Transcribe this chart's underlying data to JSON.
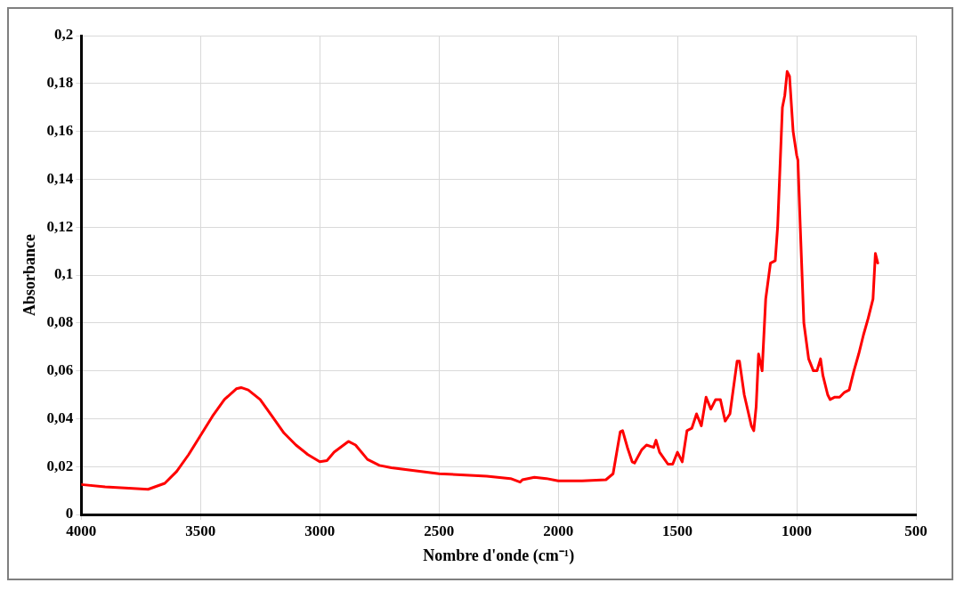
{
  "chart_data": {
    "type": "line",
    "xlabel": "Nombre d'onde (cm⁻¹)",
    "ylabel": "Absorbance",
    "xlim": [
      4000,
      500
    ],
    "xticks": [
      4000,
      3500,
      3000,
      2500,
      2000,
      1500,
      1000,
      500
    ],
    "ylim": [
      0,
      0.2
    ],
    "yticks": [
      0,
      {
        "value": 0.02,
        "label": "0,02"
      },
      {
        "value": 0.04,
        "label": "0,04"
      },
      {
        "value": 0.06,
        "label": "0,06"
      },
      {
        "value": 0.08,
        "label": "0,08"
      },
      {
        "value": 0.1,
        "label": "0,1"
      },
      {
        "value": 0.12,
        "label": "0,12"
      },
      {
        "value": 0.14,
        "label": "0,14"
      },
      {
        "value": 0.16,
        "label": "0,16"
      },
      {
        "value": 0.18,
        "label": "0,18"
      },
      {
        "value": 0.2,
        "label": "0,2"
      }
    ],
    "grid": true,
    "legend": false,
    "marker": "none",
    "line_style": "solid",
    "series": [
      {
        "color": "#ff0000",
        "x": [
          4000,
          3900,
          3800,
          3720,
          3650,
          3600,
          3550,
          3500,
          3450,
          3400,
          3350,
          3330,
          3300,
          3250,
          3200,
          3150,
          3100,
          3050,
          3000,
          2970,
          2940,
          2900,
          2880,
          2850,
          2800,
          2750,
          2700,
          2500,
          2300,
          2200,
          2160,
          2150,
          2100,
          2050,
          2000,
          1900,
          1800,
          1770,
          1740,
          1730,
          1710,
          1690,
          1680,
          1650,
          1630,
          1600,
          1590,
          1575,
          1540,
          1520,
          1500,
          1480,
          1460,
          1440,
          1420,
          1400,
          1380,
          1360,
          1340,
          1320,
          1300,
          1280,
          1250,
          1240,
          1220,
          1190,
          1180,
          1170,
          1160,
          1145,
          1130,
          1110,
          1090,
          1080,
          1060,
          1050,
          1040,
          1030,
          1015,
          1000,
          995,
          985,
          970,
          950,
          930,
          915,
          900,
          890,
          870,
          860,
          840,
          820,
          800,
          780,
          760,
          740,
          720,
          700,
          680,
          670,
          660
        ],
        "values": [
          0.0125,
          0.0115,
          0.011,
          0.0105,
          0.013,
          0.018,
          0.025,
          0.033,
          0.041,
          0.048,
          0.0525,
          0.053,
          0.052,
          0.048,
          0.041,
          0.034,
          0.029,
          0.025,
          0.022,
          0.0225,
          0.026,
          0.029,
          0.0305,
          0.029,
          0.023,
          0.0205,
          0.0195,
          0.017,
          0.016,
          0.015,
          0.0135,
          0.0145,
          0.0155,
          0.015,
          0.014,
          0.014,
          0.0145,
          0.017,
          0.0345,
          0.035,
          0.028,
          0.022,
          0.0215,
          0.027,
          0.029,
          0.028,
          0.031,
          0.026,
          0.021,
          0.021,
          0.026,
          0.022,
          0.035,
          0.036,
          0.042,
          0.037,
          0.049,
          0.044,
          0.048,
          0.048,
          0.039,
          0.042,
          0.064,
          0.064,
          0.05,
          0.037,
          0.035,
          0.045,
          0.067,
          0.06,
          0.09,
          0.105,
          0.106,
          0.12,
          0.17,
          0.175,
          0.185,
          0.183,
          0.16,
          0.15,
          0.148,
          0.12,
          0.08,
          0.065,
          0.06,
          0.06,
          0.065,
          0.058,
          0.05,
          0.048,
          0.049,
          0.049,
          0.051,
          0.052,
          0.06,
          0.067,
          0.075,
          0.082,
          0.09,
          0.109,
          0.105
        ]
      }
    ]
  }
}
